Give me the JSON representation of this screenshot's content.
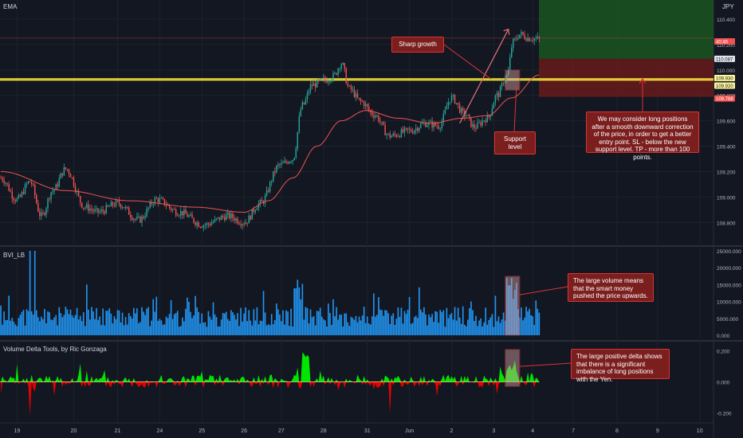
{
  "chart_data": [
    {
      "type": "candlestick",
      "indicator_label": "EMA",
      "currency_label": "JPY",
      "price_axis": {
        "ticks": [
          "110.400",
          "110.200",
          "110.000",
          "109.800",
          "109.600",
          "109.400",
          "109.200",
          "109.000",
          "108.800"
        ],
        "ylim": [
          108.62,
          110.55
        ]
      },
      "price_badges": [
        {
          "value": "40:46",
          "color": "#ef5350"
        },
        {
          "value": "110.087",
          "color": "#e0e3eb"
        },
        {
          "value": "109.930",
          "color": "#fff59d"
        },
        {
          "value": "109.920",
          "color": "#fff59d"
        },
        {
          "value": "109.788",
          "color": "#ef5350"
        }
      ],
      "levels": [
        109.93,
        109.92
      ],
      "take_profit_zone": [
        110.087,
        110.55
      ],
      "stop_loss_zone": [
        109.788,
        110.087
      ],
      "annotations": [
        "Sharp growth",
        "Support level",
        "We may consider long positions after a smooth downward correction of the price, in order to get a better entry point. SL - below the new support level. TP - more than 100 points."
      ],
      "anchors": [
        {
          "bar": 0,
          "price": 109.15
        },
        {
          "bar": 10,
          "price": 108.98
        },
        {
          "bar": 18,
          "price": 109.12
        },
        {
          "bar": 25,
          "price": 108.85
        },
        {
          "bar": 32,
          "price": 109.05
        },
        {
          "bar": 40,
          "price": 109.22
        },
        {
          "bar": 52,
          "price": 108.92
        },
        {
          "bar": 60,
          "price": 108.88
        },
        {
          "bar": 72,
          "price": 108.95
        },
        {
          "bar": 85,
          "price": 108.82
        },
        {
          "bar": 96,
          "price": 108.98
        },
        {
          "bar": 110,
          "price": 108.88
        },
        {
          "bar": 125,
          "price": 108.78
        },
        {
          "bar": 140,
          "price": 108.85
        },
        {
          "bar": 150,
          "price": 108.8
        },
        {
          "bar": 160,
          "price": 108.95
        },
        {
          "bar": 172,
          "price": 109.25
        },
        {
          "bar": 180,
          "price": 109.3
        },
        {
          "bar": 186,
          "price": 109.72
        },
        {
          "bar": 192,
          "price": 109.88
        },
        {
          "bar": 200,
          "price": 109.92
        },
        {
          "bar": 205,
          "price": 109.95
        },
        {
          "bar": 210,
          "price": 110.05
        },
        {
          "bar": 215,
          "price": 109.85
        },
        {
          "bar": 222,
          "price": 109.75
        },
        {
          "bar": 230,
          "price": 109.65
        },
        {
          "bar": 240,
          "price": 109.48
        },
        {
          "bar": 252,
          "price": 109.52
        },
        {
          "bar": 262,
          "price": 109.58
        },
        {
          "bar": 270,
          "price": 109.56
        },
        {
          "bar": 278,
          "price": 109.78
        },
        {
          "bar": 286,
          "price": 109.65
        },
        {
          "bar": 292,
          "price": 109.55
        },
        {
          "bar": 300,
          "price": 109.62
        },
        {
          "bar": 306,
          "price": 109.8
        },
        {
          "bar": 312,
          "price": 109.95
        },
        {
          "bar": 316,
          "price": 110.22
        },
        {
          "bar": 320,
          "price": 110.28
        },
        {
          "bar": 326,
          "price": 110.25
        },
        {
          "bar": 332,
          "price": 110.24
        }
      ],
      "ema_anchors": [
        {
          "bar": 0,
          "price": 109.2
        },
        {
          "bar": 40,
          "price": 109.05
        },
        {
          "bar": 80,
          "price": 108.97
        },
        {
          "bar": 120,
          "price": 108.92
        },
        {
          "bar": 150,
          "price": 108.88
        },
        {
          "bar": 165,
          "price": 108.97
        },
        {
          "bar": 180,
          "price": 109.15
        },
        {
          "bar": 195,
          "price": 109.4
        },
        {
          "bar": 210,
          "price": 109.6
        },
        {
          "bar": 225,
          "price": 109.68
        },
        {
          "bar": 245,
          "price": 109.62
        },
        {
          "bar": 265,
          "price": 109.58
        },
        {
          "bar": 285,
          "price": 109.62
        },
        {
          "bar": 300,
          "price": 109.64
        },
        {
          "bar": 315,
          "price": 109.78
        },
        {
          "bar": 332,
          "price": 109.96
        }
      ]
    },
    {
      "type": "bar",
      "title": "BVI_LB",
      "y_ticks": [
        "25000.000",
        "20000.000",
        "15000.000",
        "10000.000",
        "5000.000",
        "0.000"
      ],
      "ylim": [
        0,
        25000
      ],
      "annotation": "The large volume means that the smart money pushed the price upwards.",
      "color": "#2196f3"
    },
    {
      "type": "area",
      "title": "Volume Delta Tools, by Ric Gonzaga",
      "y_ticks": [
        "0.200",
        "0.000",
        "-0.200"
      ],
      "ylim": [
        -0.26,
        0.26
      ],
      "annotation": "The large positive delta shows that there is a significant imbalance of long positions with the Yen.",
      "positive_color": "#00e600",
      "negative_color": "#e60000"
    }
  ],
  "time_axis": {
    "labels": [
      {
        "text": "19",
        "bar": 10
      },
      {
        "text": "20",
        "bar": 45
      },
      {
        "text": "21",
        "bar": 72
      },
      {
        "text": "24",
        "bar": 98
      },
      {
        "text": "25",
        "bar": 124
      },
      {
        "text": "26",
        "bar": 150
      },
      {
        "text": "27",
        "bar": 173
      },
      {
        "text": "28",
        "bar": 199
      },
      {
        "text": "31",
        "bar": 226
      },
      {
        "text": "Jun",
        "bar": 252
      },
      {
        "text": "2",
        "bar": 278
      },
      {
        "text": "3",
        "bar": 304
      },
      {
        "text": "4",
        "bar": 328
      },
      {
        "text": "7",
        "bar": 353
      },
      {
        "text": "8",
        "bar": 380
      },
      {
        "text": "9",
        "bar": 405
      },
      {
        "text": "10",
        "bar": 431
      }
    ],
    "bars_total": 440
  }
}
